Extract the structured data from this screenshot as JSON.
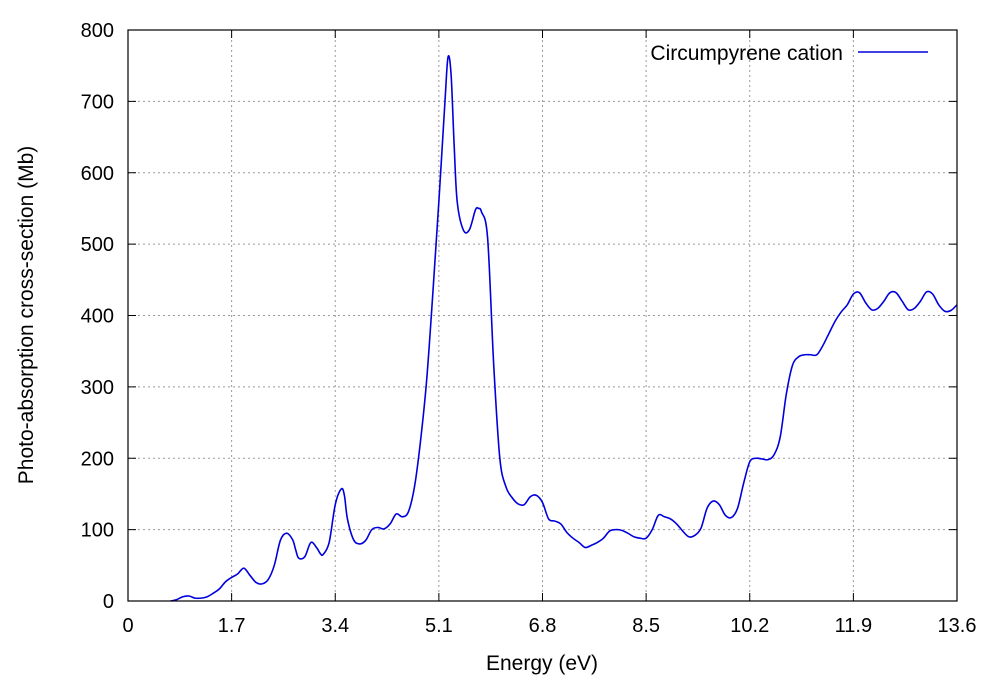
{
  "chart_data": {
    "type": "line",
    "title": "",
    "xlabel": "Energy (eV)",
    "ylabel": "Photo-absorption cross-section (Mb)",
    "xlim": [
      0,
      13.6
    ],
    "ylim": [
      0,
      800
    ],
    "xticks": [
      "0",
      "1.7",
      "3.4",
      "5.1",
      "6.8",
      "8.5",
      "10.2",
      "11.9",
      "13.6"
    ],
    "yticks": [
      "0",
      "100",
      "200",
      "300",
      "400",
      "500",
      "600",
      "700",
      "800"
    ],
    "grid": true,
    "legend_position": "top-right",
    "series": [
      {
        "name": "Circumpyrene cation",
        "color": "#0000dd",
        "x": [
          0.7,
          0.8,
          0.9,
          1.0,
          1.1,
          1.2,
          1.3,
          1.4,
          1.5,
          1.6,
          1.7,
          1.8,
          1.9,
          2.0,
          2.1,
          2.2,
          2.3,
          2.4,
          2.5,
          2.6,
          2.7,
          2.75,
          2.8,
          2.9,
          3.0,
          3.1,
          3.15,
          3.2,
          3.3,
          3.4,
          3.5,
          3.55,
          3.6,
          3.7,
          3.8,
          3.9,
          4.0,
          4.1,
          4.2,
          4.3,
          4.4,
          4.5,
          4.6,
          4.7,
          4.8,
          4.9,
          5.0,
          5.1,
          5.2,
          5.25,
          5.3,
          5.35,
          5.4,
          5.5,
          5.6,
          5.7,
          5.75,
          5.8,
          5.9,
          6.0,
          6.1,
          6.2,
          6.3,
          6.4,
          6.5,
          6.6,
          6.7,
          6.8,
          6.9,
          7.0,
          7.1,
          7.2,
          7.3,
          7.4,
          7.5,
          7.6,
          7.7,
          7.8,
          7.9,
          8.0,
          8.1,
          8.2,
          8.3,
          8.4,
          8.5,
          8.6,
          8.7,
          8.8,
          8.9,
          9.0,
          9.1,
          9.2,
          9.3,
          9.4,
          9.5,
          9.6,
          9.7,
          9.8,
          9.9,
          10.0,
          10.1,
          10.2,
          10.3,
          10.4,
          10.5,
          10.6,
          10.7,
          10.8,
          10.9,
          11.0,
          11.1,
          11.2,
          11.3,
          11.4,
          11.5,
          11.6,
          11.7,
          11.8,
          11.9,
          12.0,
          12.1,
          12.2,
          12.3,
          12.4,
          12.5,
          12.6,
          12.7,
          12.8,
          12.9,
          13.0,
          13.1,
          13.2,
          13.3,
          13.4,
          13.5,
          13.6
        ],
        "values": [
          0,
          2,
          6,
          7,
          4,
          4,
          6,
          11,
          17,
          27,
          33,
          38,
          46,
          36,
          26,
          24,
          30,
          50,
          85,
          95,
          86,
          72,
          60,
          62,
          82,
          74,
          67,
          65,
          82,
          135,
          157,
          148,
          115,
          86,
          80,
          85,
          100,
          103,
          101,
          108,
          122,
          118,
          125,
          160,
          225,
          310,
          430,
          560,
          700,
          762,
          738,
          640,
          560,
          520,
          520,
          548,
          550,
          545,
          508,
          330,
          200,
          160,
          145,
          136,
          135,
          146,
          148,
          138,
          115,
          112,
          108,
          96,
          88,
          82,
          75,
          78,
          82,
          88,
          98,
          100,
          99,
          95,
          90,
          88,
          88,
          100,
          120,
          118,
          115,
          108,
          98,
          90,
          92,
          102,
          130,
          140,
          135,
          120,
          117,
          130,
          165,
          195,
          200,
          199,
          198,
          205,
          230,
          290,
          330,
          342,
          345,
          345,
          345,
          358,
          375,
          392,
          405,
          415,
          430,
          432,
          418,
          408,
          410,
          420,
          432,
          432,
          420,
          408,
          410,
          420,
          433,
          430,
          415,
          406,
          407,
          415
        ]
      }
    ]
  }
}
